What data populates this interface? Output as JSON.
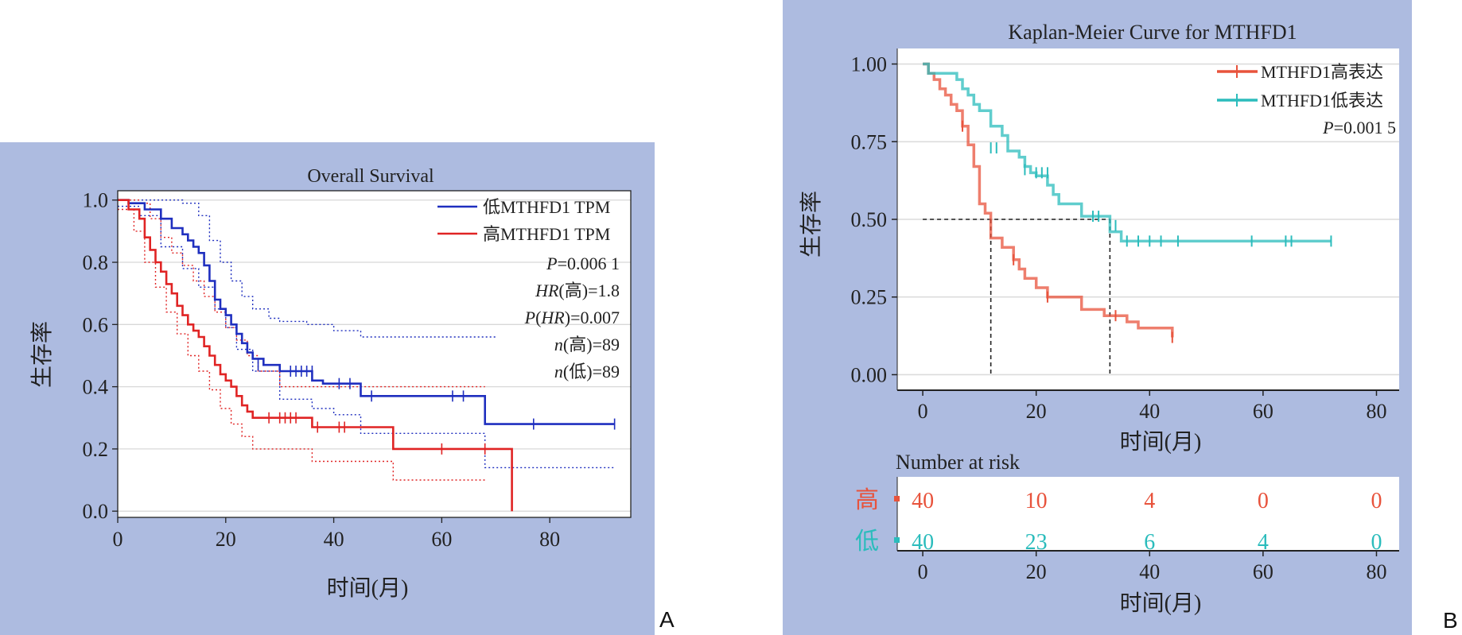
{
  "chart_data": [
    {
      "type": "line",
      "subtype": "kaplan-meier",
      "panel_label": "A",
      "title": "Overall Survival",
      "xlabel": "时间(月)",
      "ylabel": "生存率",
      "xlim": [
        0,
        95
      ],
      "ylim": [
        -0.02,
        1.03
      ],
      "x_ticks": [
        0,
        20,
        40,
        60,
        80
      ],
      "y_ticks": [
        0.0,
        0.2,
        0.4,
        0.6,
        0.8,
        1.0
      ],
      "y_tick_labels": [
        "0.0",
        "0.2",
        "0.4",
        "0.6",
        "0.8",
        "1.0"
      ],
      "grid": "horizontal",
      "legend_position": "top-right",
      "annotations": [
        "P=0.006 1",
        "HR(高)=1.8",
        "P(HR)=0.007",
        "n(高)=89",
        "n(低)=89"
      ],
      "series": [
        {
          "name": "低MTHFD1 TPM",
          "color": "#1f2fbf",
          "x": [
            0,
            2,
            5,
            8,
            10,
            12,
            13,
            14,
            15,
            16,
            17,
            18,
            19,
            20,
            21,
            22,
            23,
            24,
            25,
            27,
            30,
            36,
            38,
            45,
            68,
            92
          ],
          "y": [
            1.0,
            0.99,
            0.97,
            0.94,
            0.91,
            0.89,
            0.87,
            0.85,
            0.83,
            0.79,
            0.74,
            0.68,
            0.65,
            0.63,
            0.6,
            0.57,
            0.54,
            0.51,
            0.49,
            0.47,
            0.45,
            0.42,
            0.41,
            0.37,
            0.28,
            0.28
          ],
          "censor_x": [
            26,
            32,
            33,
            34,
            35,
            36,
            41,
            43,
            47,
            62,
            64,
            77,
            92
          ],
          "censor_y": [
            0.47,
            0.45,
            0.45,
            0.45,
            0.45,
            0.45,
            0.41,
            0.41,
            0.37,
            0.37,
            0.37,
            0.28,
            0.28
          ]
        },
        {
          "name": "高MTHFD1 TPM",
          "color": "#e02424",
          "x": [
            0,
            2,
            4,
            5,
            6,
            7,
            8,
            9,
            10,
            11,
            12,
            13,
            14,
            15,
            16,
            17,
            18,
            19,
            20,
            21,
            22,
            23,
            24,
            25,
            36,
            51,
            73,
            73
          ],
          "y": [
            1.0,
            0.97,
            0.94,
            0.88,
            0.84,
            0.8,
            0.77,
            0.73,
            0.7,
            0.66,
            0.63,
            0.6,
            0.58,
            0.56,
            0.53,
            0.5,
            0.47,
            0.44,
            0.42,
            0.4,
            0.37,
            0.34,
            0.32,
            0.3,
            0.27,
            0.2,
            0.2,
            0.0
          ],
          "censor_x": [
            28,
            30,
            31,
            32,
            33,
            37,
            41,
            42,
            60,
            68
          ],
          "censor_y": [
            0.3,
            0.3,
            0.3,
            0.3,
            0.3,
            0.27,
            0.27,
            0.27,
            0.2,
            0.2
          ]
        }
      ],
      "confidence_bands": [
        {
          "color": "#1f2fbf",
          "bound": "upper",
          "x": [
            0,
            8,
            12,
            15,
            17,
            19,
            21,
            23,
            25,
            28,
            30,
            35,
            40,
            45,
            68,
            70
          ],
          "y": [
            1.0,
            1.0,
            0.99,
            0.95,
            0.87,
            0.8,
            0.74,
            0.69,
            0.65,
            0.62,
            0.61,
            0.6,
            0.58,
            0.56,
            0.56,
            0.56
          ]
        },
        {
          "color": "#1f2fbf",
          "bound": "lower",
          "x": [
            0,
            4,
            8,
            12,
            15,
            18,
            20,
            22,
            25,
            30,
            36,
            40,
            45,
            68,
            92
          ],
          "y": [
            0.98,
            0.95,
            0.85,
            0.78,
            0.72,
            0.65,
            0.59,
            0.52,
            0.45,
            0.36,
            0.33,
            0.31,
            0.25,
            0.14,
            0.14
          ]
        },
        {
          "color": "#e02424",
          "bound": "upper",
          "x": [
            0,
            4,
            6,
            8,
            10,
            12,
            14,
            16,
            18,
            20,
            22,
            24,
            26,
            30,
            36,
            50,
            68
          ],
          "y": [
            1.0,
            0.99,
            0.94,
            0.88,
            0.83,
            0.79,
            0.74,
            0.69,
            0.64,
            0.59,
            0.55,
            0.5,
            0.45,
            0.4,
            0.4,
            0.4,
            0.4
          ]
        },
        {
          "color": "#e02424",
          "bound": "lower",
          "x": [
            0,
            3,
            5,
            7,
            9,
            11,
            13,
            15,
            17,
            19,
            21,
            23,
            25,
            36,
            51,
            68
          ],
          "y": [
            0.97,
            0.9,
            0.8,
            0.72,
            0.64,
            0.57,
            0.5,
            0.45,
            0.39,
            0.33,
            0.28,
            0.24,
            0.2,
            0.16,
            0.1,
            0.1
          ]
        }
      ]
    },
    {
      "type": "line",
      "subtype": "kaplan-meier",
      "panel_label": "B",
      "title": "Kaplan-Meier Curve for MTHFD1",
      "xlabel": "时间(月)",
      "ylabel": "生存率",
      "xlim": [
        -4.5,
        84
      ],
      "ylim": [
        -0.05,
        1.05
      ],
      "x_ticks": [
        0,
        20,
        40,
        60,
        80
      ],
      "y_ticks": [
        0.0,
        0.25,
        0.5,
        0.75,
        1.0
      ],
      "y_tick_labels": [
        "0.00",
        "0.25",
        "0.50",
        "0.75",
        "1.00"
      ],
      "grid": "horizontal",
      "legend_position": "top-right",
      "annotations": [
        "P=0.001 5"
      ],
      "median_survival": {
        "y": 0.5,
        "x_values": [
          12,
          33
        ]
      },
      "series": [
        {
          "name": "MTHFD1高表达",
          "color": "#e8533c",
          "x": [
            0,
            1,
            2,
            3,
            4,
            5,
            6,
            7,
            8,
            9,
            10,
            11,
            12,
            14,
            16,
            17,
            18,
            20,
            22,
            28,
            32,
            34,
            36,
            38,
            44
          ],
          "y": [
            1.0,
            0.97,
            0.95,
            0.92,
            0.9,
            0.87,
            0.85,
            0.8,
            0.74,
            0.67,
            0.55,
            0.52,
            0.44,
            0.41,
            0.37,
            0.34,
            0.31,
            0.28,
            0.25,
            0.21,
            0.19,
            0.19,
            0.17,
            0.15,
            0.12
          ],
          "censor_x": [
            7,
            16,
            22,
            34,
            44
          ],
          "censor_y": [
            0.8,
            0.37,
            0.25,
            0.19,
            0.12
          ]
        },
        {
          "name": "MTHFD1低表达",
          "color": "#2bbcbc",
          "x": [
            0,
            1,
            5,
            6,
            7,
            8,
            9,
            10,
            12,
            14,
            15,
            17,
            18,
            19,
            20,
            22,
            23,
            24,
            28,
            33,
            35,
            36,
            72
          ],
          "y": [
            1.0,
            0.97,
            0.97,
            0.95,
            0.92,
            0.9,
            0.87,
            0.85,
            0.8,
            0.77,
            0.72,
            0.7,
            0.67,
            0.65,
            0.64,
            0.61,
            0.58,
            0.55,
            0.51,
            0.46,
            0.43,
            0.43,
            0.43
          ],
          "censor_x": [
            12,
            13,
            18,
            20,
            21,
            22,
            30,
            31,
            34,
            36,
            38,
            40,
            42,
            45,
            58,
            64,
            65,
            72
          ],
          "censor_y": [
            0.73,
            0.73,
            0.66,
            0.65,
            0.65,
            0.65,
            0.51,
            0.51,
            0.48,
            0.43,
            0.43,
            0.43,
            0.43,
            0.43,
            0.43,
            0.43,
            0.43,
            0.43
          ]
        }
      ],
      "risk_table": {
        "title": "Number at risk",
        "times": [
          0,
          20,
          40,
          60,
          80
        ],
        "rows": [
          {
            "label": "高",
            "color": "#e8533c",
            "values": [
              40,
              10,
              4,
              0,
              0
            ]
          },
          {
            "label": "低",
            "color": "#2bbcbc",
            "values": [
              40,
              23,
              6,
              4,
              0
            ]
          }
        ],
        "xlabel": "时间(月)"
      }
    }
  ]
}
